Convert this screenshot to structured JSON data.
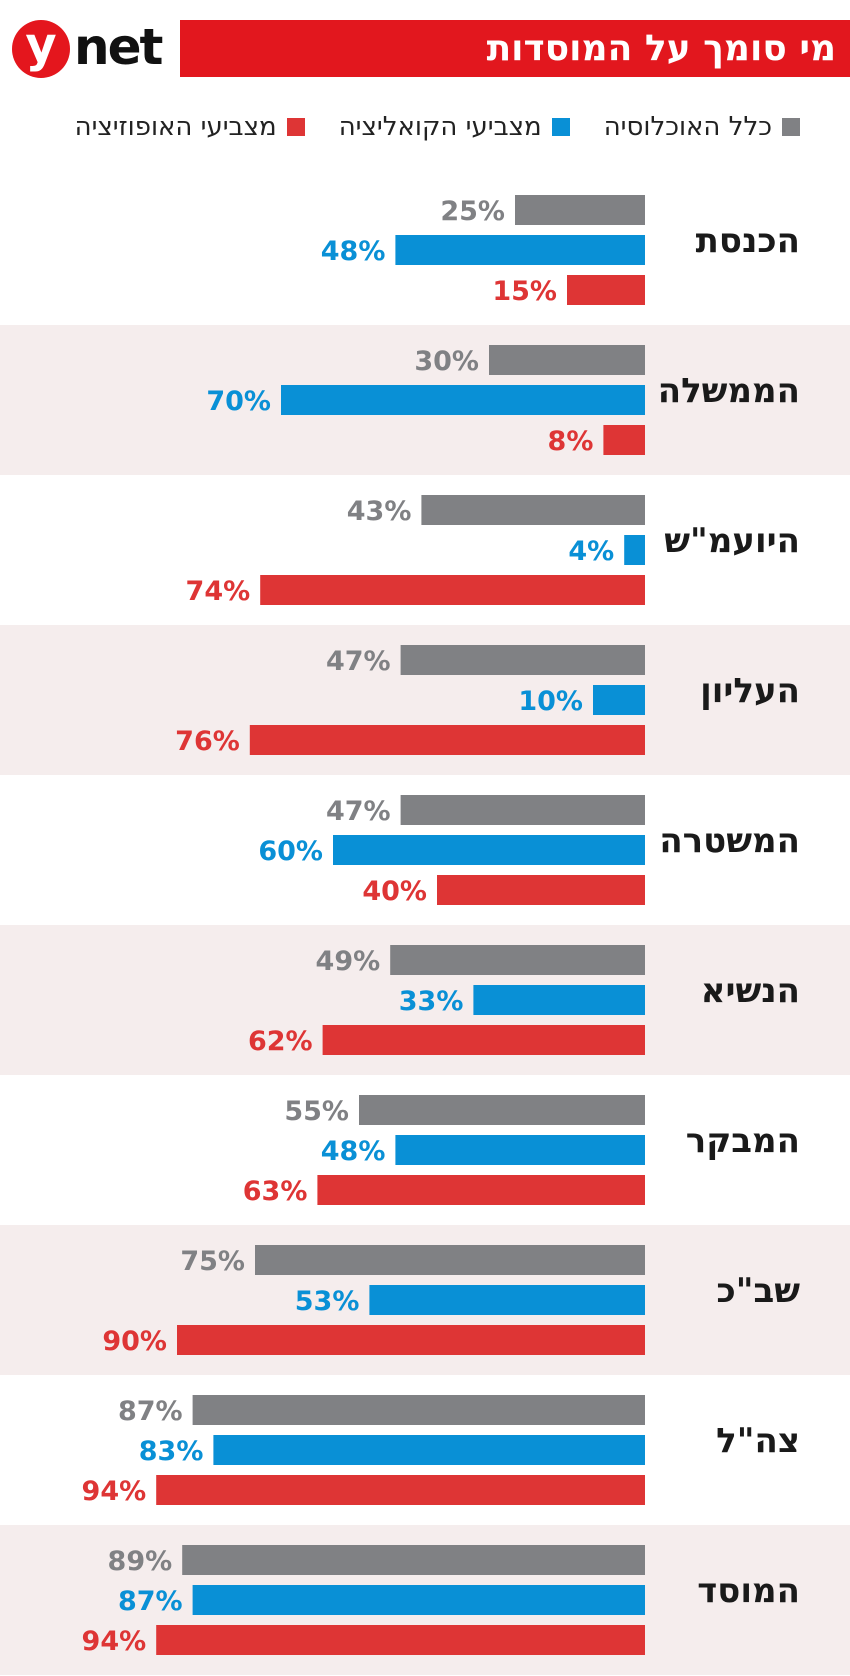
{
  "brand": {
    "logo_y": "y",
    "logo_net": "net"
  },
  "header": {
    "title": "מי סומך על המוסדות"
  },
  "colors": {
    "general": "#808184",
    "coalition": "#0990d6",
    "opposition": "#de3535",
    "band": "#f5eded",
    "title_bg": "#e2171e",
    "logo_red": "#e4161d"
  },
  "legend": [
    {
      "name": "כלל האוכלוסיה",
      "color": "#808184"
    },
    {
      "name": "מצביעי הקואליציה",
      "color": "#0990d6"
    },
    {
      "name": "מצביעי האופוזיציה",
      "color": "#de3535"
    }
  ],
  "chart_data": {
    "type": "bar",
    "orientation": "horizontal",
    "title": "מי סומך על המוסדות",
    "unit": "%",
    "categories": [
      "הכנסת",
      "הממשלה",
      "היועמ\"ש",
      "העליון",
      "המשטרה",
      "הנשיא",
      "המבקר",
      "שב\"כ",
      "צה\"ל",
      "המוסד"
    ],
    "series": [
      {
        "name": "כלל האוכלוסיה",
        "values": [
          25,
          30,
          43,
          47,
          47,
          49,
          55,
          75,
          87,
          89
        ]
      },
      {
        "name": "מצביעי הקואליציה",
        "values": [
          48,
          70,
          4,
          10,
          60,
          33,
          48,
          53,
          83,
          87
        ]
      },
      {
        "name": "מצביעי האופוזיציה",
        "values": [
          15,
          8,
          74,
          76,
          40,
          62,
          63,
          90,
          94,
          94
        ]
      }
    ],
    "xlim": [
      0,
      100
    ],
    "legend_position": "top",
    "grid": false
  }
}
